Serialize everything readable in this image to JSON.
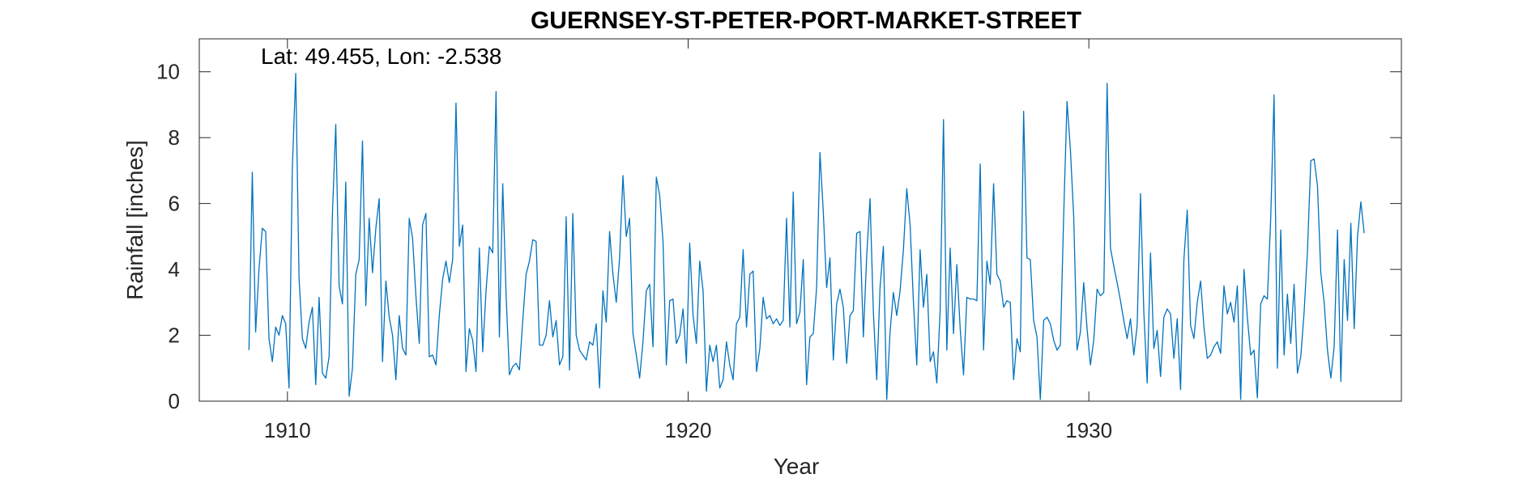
{
  "chart_data": {
    "type": "line",
    "title": "GUERNSEY-ST-PETER-PORT-MARKET-STREET",
    "annotation": "Lat: 49.455, Lon: -2.538",
    "xlabel": "Year",
    "ylabel": "Rainfall [inches]",
    "xlim": [
      1907.8,
      1937.8
    ],
    "ylim": [
      0,
      11
    ],
    "xticks": [
      1910,
      1920,
      1930
    ],
    "yticks": [
      0,
      2,
      4,
      6,
      8,
      10
    ],
    "grid": false,
    "line_color": "#0072BD",
    "series": [
      {
        "x_start": 1909.04,
        "x_step": 0.08333,
        "values": [
          1.55,
          6.95,
          2.1,
          4.0,
          5.25,
          5.15,
          1.9,
          1.2,
          2.25,
          2.0,
          2.6,
          2.35,
          0.4,
          7.1,
          9.95,
          3.75,
          1.9,
          1.6,
          2.4,
          2.85,
          0.5,
          3.15,
          0.85,
          0.7,
          1.35,
          5.7,
          8.4,
          3.5,
          2.95,
          6.65,
          0.15,
          1.0,
          3.85,
          4.3,
          7.9,
          2.9,
          5.55,
          3.9,
          5.25,
          6.15,
          1.2,
          3.65,
          2.55,
          2.0,
          0.65,
          2.6,
          1.6,
          1.4,
          5.55,
          4.95,
          3.2,
          1.75,
          5.35,
          5.7,
          1.35,
          1.4,
          1.1,
          2.6,
          3.7,
          4.25,
          3.6,
          4.3,
          9.05,
          4.7,
          5.35,
          0.9,
          2.2,
          1.85,
          0.9,
          4.65,
          1.5,
          3.35,
          4.7,
          4.5,
          9.4,
          1.95,
          6.6,
          3.25,
          0.8,
          1.05,
          1.15,
          0.95,
          2.45,
          3.85,
          4.25,
          4.9,
          4.85,
          1.7,
          1.7,
          2.0,
          3.05,
          1.95,
          2.45,
          1.1,
          1.35,
          5.6,
          0.95,
          5.7,
          2.0,
          1.55,
          1.4,
          1.25,
          1.8,
          1.7,
          2.35,
          0.4,
          3.35,
          2.4,
          5.15,
          3.85,
          3.0,
          4.35,
          6.85,
          5.0,
          5.55,
          2.05,
          1.4,
          0.7,
          1.8,
          3.35,
          3.55,
          1.65,
          6.8,
          6.25,
          4.85,
          1.1,
          3.05,
          3.1,
          1.75,
          2.0,
          2.8,
          1.15,
          4.8,
          2.6,
          1.75,
          4.25,
          3.35,
          0.3,
          1.7,
          1.2,
          1.7,
          0.4,
          0.65,
          1.8,
          1.1,
          0.65,
          2.35,
          2.55,
          4.6,
          2.25,
          3.85,
          3.95,
          0.9,
          1.6,
          3.15,
          2.5,
          2.6,
          2.35,
          2.5,
          2.3,
          2.45,
          5.55,
          2.25,
          6.35,
          2.35,
          2.7,
          4.3,
          0.5,
          1.95,
          2.05,
          3.45,
          7.55,
          5.75,
          3.45,
          4.35,
          1.25,
          2.95,
          3.4,
          2.85,
          1.15,
          2.6,
          2.75,
          5.1,
          5.15,
          1.95,
          4.4,
          6.15,
          2.7,
          0.65,
          3.45,
          4.7,
          0.05,
          2.1,
          3.3,
          2.6,
          3.35,
          4.6,
          6.45,
          5.35,
          3.0,
          1.1,
          4.6,
          2.85,
          3.85,
          1.2,
          1.5,
          0.55,
          2.75,
          8.55,
          1.55,
          4.65,
          2.05,
          4.15,
          2.2,
          0.8,
          3.15,
          3.1,
          3.1,
          3.05,
          7.2,
          1.55,
          4.25,
          3.55,
          6.6,
          3.85,
          3.65,
          2.85,
          3.05,
          3.0,
          0.65,
          1.9,
          1.5,
          8.8,
          4.35,
          4.3,
          2.45,
          1.95,
          0.05,
          2.45,
          2.55,
          2.35,
          1.85,
          1.55,
          1.7,
          5.65,
          9.1,
          7.65,
          5.6,
          1.55,
          2.1,
          3.6,
          2.2,
          1.1,
          1.85,
          3.4,
          3.2,
          3.3,
          9.65,
          4.65,
          4.1,
          3.6,
          3.05,
          2.45,
          1.9,
          2.5,
          1.4,
          2.3,
          6.3,
          2.7,
          0.55,
          4.5,
          1.6,
          2.15,
          0.75,
          2.55,
          2.8,
          2.65,
          1.3,
          2.5,
          0.35,
          4.3,
          5.8,
          2.3,
          1.9,
          3.0,
          3.65,
          2.25,
          1.3,
          1.4,
          1.65,
          1.8,
          1.45,
          3.5,
          2.65,
          3.0,
          2.4,
          3.5,
          0.05,
          4.0,
          2.55,
          1.4,
          1.55,
          0.1,
          2.95,
          3.2,
          3.1,
          5.55,
          9.3,
          1.0,
          5.2,
          1.4,
          3.25,
          1.75,
          3.55,
          0.85,
          1.35,
          2.7,
          4.55,
          7.3,
          7.35,
          6.55,
          3.9,
          3.0,
          1.55,
          0.7,
          1.65,
          5.2,
          0.6,
          4.3,
          2.45,
          5.4,
          2.2,
          5.0,
          6.05,
          5.1
        ]
      }
    ]
  }
}
